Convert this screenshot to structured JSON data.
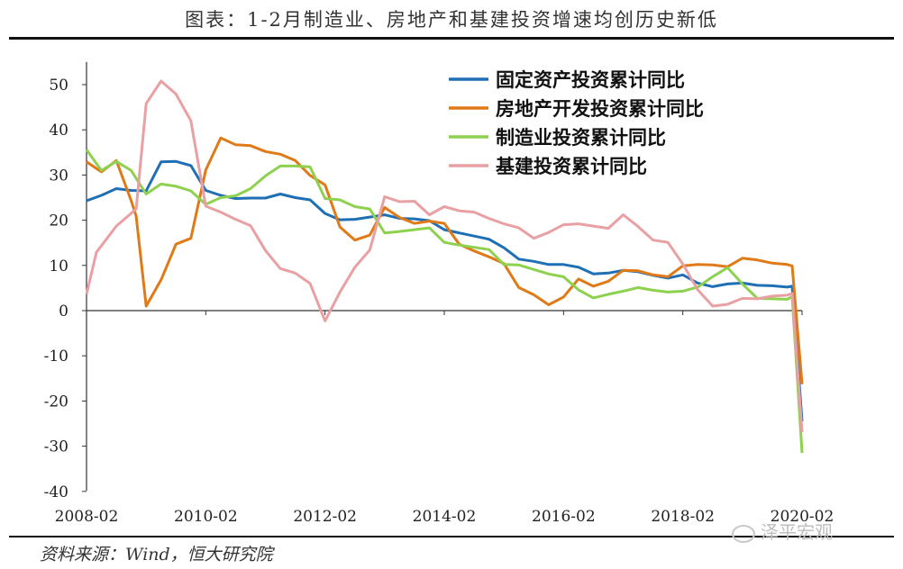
{
  "title": "图表：1-2月制造业、房地产和基建投资增速均创历史新低",
  "source": "资料来源：Wind，恒大研究院",
  "watermark": "泽平宏观",
  "chart_data": {
    "type": "line",
    "title": "图表：1-2月制造业、房地产和基建投资增速均创历史新低",
    "ylim": [
      -40,
      55
    ],
    "yticks": [
      "50",
      "40",
      "30",
      "20",
      "10",
      "0",
      "-10",
      "-20",
      "-30",
      "-40"
    ],
    "xticks": [
      "2008-02",
      "2010-02",
      "2012-02",
      "2014-02",
      "2016-02",
      "2018-02",
      "2020-02"
    ],
    "xrange": [
      "2008-02",
      "2020-02"
    ],
    "grid": false,
    "legend_position": "top-right",
    "series": [
      {
        "name": "固定资产投资累计同比",
        "color": "#1f6fb5",
        "points": [
          [
            "2008-02",
            24.3
          ],
          [
            "2008-05",
            25.5
          ],
          [
            "2008-08",
            27.0
          ],
          [
            "2008-11",
            26.6
          ],
          [
            "2009-02",
            26.5
          ],
          [
            "2009-05",
            32.9
          ],
          [
            "2009-08",
            33.0
          ],
          [
            "2009-11",
            32.1
          ],
          [
            "2010-02",
            26.6
          ],
          [
            "2010-05",
            25.5
          ],
          [
            "2010-08",
            24.8
          ],
          [
            "2010-11",
            24.9
          ],
          [
            "2011-02",
            24.9
          ],
          [
            "2011-05",
            25.8
          ],
          [
            "2011-08",
            25.0
          ],
          [
            "2011-11",
            24.5
          ],
          [
            "2012-02",
            21.5
          ],
          [
            "2012-05",
            20.1
          ],
          [
            "2012-08",
            20.2
          ],
          [
            "2012-11",
            20.7
          ],
          [
            "2013-02",
            21.2
          ],
          [
            "2013-05",
            20.4
          ],
          [
            "2013-08",
            20.3
          ],
          [
            "2013-11",
            19.9
          ],
          [
            "2014-02",
            17.9
          ],
          [
            "2014-05",
            17.2
          ],
          [
            "2014-08",
            16.5
          ],
          [
            "2014-11",
            15.8
          ],
          [
            "2015-02",
            13.9
          ],
          [
            "2015-05",
            11.4
          ],
          [
            "2015-08",
            10.9
          ],
          [
            "2015-11",
            10.2
          ],
          [
            "2016-02",
            10.2
          ],
          [
            "2016-05",
            9.6
          ],
          [
            "2016-08",
            8.1
          ],
          [
            "2016-11",
            8.3
          ],
          [
            "2017-02",
            8.9
          ],
          [
            "2017-05",
            8.6
          ],
          [
            "2017-08",
            7.8
          ],
          [
            "2017-11",
            7.2
          ],
          [
            "2018-02",
            7.9
          ],
          [
            "2018-05",
            6.1
          ],
          [
            "2018-08",
            5.3
          ],
          [
            "2018-11",
            5.9
          ],
          [
            "2019-02",
            6.1
          ],
          [
            "2019-05",
            5.6
          ],
          [
            "2019-08",
            5.5
          ],
          [
            "2019-11",
            5.2
          ],
          [
            "2019-12",
            5.4
          ],
          [
            "2020-02",
            -24.5
          ]
        ]
      },
      {
        "name": "房地产开发投资累计同比",
        "color": "#e07a17",
        "points": [
          [
            "2008-02",
            32.9
          ],
          [
            "2008-05",
            30.7
          ],
          [
            "2008-08",
            33.2
          ],
          [
            "2008-11",
            24.3
          ],
          [
            "2008-12",
            20.9
          ],
          [
            "2009-02",
            1.0
          ],
          [
            "2009-05",
            6.8
          ],
          [
            "2009-08",
            14.7
          ],
          [
            "2009-11",
            16.0
          ],
          [
            "2010-02",
            31.1
          ],
          [
            "2010-05",
            38.2
          ],
          [
            "2010-08",
            36.7
          ],
          [
            "2010-11",
            36.5
          ],
          [
            "2011-02",
            35.2
          ],
          [
            "2011-05",
            34.6
          ],
          [
            "2011-08",
            33.2
          ],
          [
            "2011-11",
            29.9
          ],
          [
            "2012-02",
            27.8
          ],
          [
            "2012-05",
            18.5
          ],
          [
            "2012-08",
            15.6
          ],
          [
            "2012-11",
            16.7
          ],
          [
            "2013-02",
            22.8
          ],
          [
            "2013-05",
            20.6
          ],
          [
            "2013-08",
            19.3
          ],
          [
            "2013-11",
            19.8
          ],
          [
            "2014-02",
            19.3
          ],
          [
            "2014-05",
            14.7
          ],
          [
            "2014-08",
            13.2
          ],
          [
            "2014-11",
            11.9
          ],
          [
            "2015-02",
            10.4
          ],
          [
            "2015-05",
            5.1
          ],
          [
            "2015-08",
            3.5
          ],
          [
            "2015-11",
            1.3
          ],
          [
            "2016-02",
            3.0
          ],
          [
            "2016-05",
            7.0
          ],
          [
            "2016-08",
            5.4
          ],
          [
            "2016-11",
            6.5
          ],
          [
            "2017-02",
            8.9
          ],
          [
            "2017-05",
            8.8
          ],
          [
            "2017-08",
            7.9
          ],
          [
            "2017-11",
            7.5
          ],
          [
            "2018-02",
            9.9
          ],
          [
            "2018-05",
            10.2
          ],
          [
            "2018-08",
            10.1
          ],
          [
            "2018-11",
            9.7
          ],
          [
            "2019-02",
            11.6
          ],
          [
            "2019-05",
            11.2
          ],
          [
            "2019-08",
            10.5
          ],
          [
            "2019-11",
            10.2
          ],
          [
            "2019-12",
            9.9
          ],
          [
            "2020-02",
            -16.3
          ]
        ]
      },
      {
        "name": "制造业投资累计同比",
        "color": "#8ed14f",
        "points": [
          [
            "2008-02",
            35.6
          ],
          [
            "2008-05",
            31.0
          ],
          [
            "2008-08",
            33.0
          ],
          [
            "2008-11",
            31.0
          ],
          [
            "2009-02",
            25.8
          ],
          [
            "2009-05",
            28.0
          ],
          [
            "2009-08",
            27.5
          ],
          [
            "2009-11",
            26.5
          ],
          [
            "2010-02",
            23.5
          ],
          [
            "2010-05",
            25.0
          ],
          [
            "2010-08",
            25.4
          ],
          [
            "2010-11",
            27.0
          ],
          [
            "2011-02",
            29.8
          ],
          [
            "2011-05",
            32.0
          ],
          [
            "2011-08",
            32.0
          ],
          [
            "2011-11",
            31.8
          ],
          [
            "2012-02",
            24.8
          ],
          [
            "2012-05",
            24.5
          ],
          [
            "2012-08",
            23.0
          ],
          [
            "2012-11",
            22.5
          ],
          [
            "2013-02",
            17.2
          ],
          [
            "2013-05",
            17.5
          ],
          [
            "2013-08",
            17.9
          ],
          [
            "2013-11",
            18.3
          ],
          [
            "2014-02",
            15.1
          ],
          [
            "2014-05",
            14.5
          ],
          [
            "2014-08",
            14.0
          ],
          [
            "2014-11",
            13.5
          ],
          [
            "2015-02",
            10.2
          ],
          [
            "2015-05",
            10.1
          ],
          [
            "2015-08",
            9.1
          ],
          [
            "2015-11",
            8.1
          ],
          [
            "2016-02",
            7.5
          ],
          [
            "2016-05",
            4.6
          ],
          [
            "2016-08",
            2.8
          ],
          [
            "2016-11",
            3.6
          ],
          [
            "2017-02",
            4.3
          ],
          [
            "2017-05",
            5.1
          ],
          [
            "2017-08",
            4.5
          ],
          [
            "2017-11",
            4.1
          ],
          [
            "2018-02",
            4.3
          ],
          [
            "2018-05",
            5.2
          ],
          [
            "2018-08",
            7.5
          ],
          [
            "2018-11",
            9.5
          ],
          [
            "2019-02",
            5.9
          ],
          [
            "2019-05",
            2.7
          ],
          [
            "2019-08",
            2.6
          ],
          [
            "2019-11",
            2.5
          ],
          [
            "2019-12",
            3.1
          ],
          [
            "2020-02",
            -31.5
          ]
        ]
      },
      {
        "name": "基建投资累计同比",
        "color": "#e9a0a3",
        "points": [
          [
            "2008-02",
            3.6
          ],
          [
            "2008-04",
            12.9
          ],
          [
            "2008-08",
            18.7
          ],
          [
            "2008-12",
            22.5
          ],
          [
            "2009-02",
            45.8
          ],
          [
            "2009-05",
            50.8
          ],
          [
            "2009-08",
            47.9
          ],
          [
            "2009-11",
            42.0
          ],
          [
            "2010-02",
            23.1
          ],
          [
            "2010-05",
            21.8
          ],
          [
            "2010-08",
            20.2
          ],
          [
            "2010-11",
            18.8
          ],
          [
            "2011-02",
            13.3
          ],
          [
            "2011-05",
            9.3
          ],
          [
            "2011-08",
            8.3
          ],
          [
            "2011-11",
            6.0
          ],
          [
            "2012-02",
            -2.3
          ],
          [
            "2012-05",
            4.1
          ],
          [
            "2012-08",
            9.6
          ],
          [
            "2012-11",
            13.4
          ],
          [
            "2013-02",
            25.2
          ],
          [
            "2013-05",
            24.1
          ],
          [
            "2013-08",
            24.2
          ],
          [
            "2013-11",
            21.2
          ],
          [
            "2014-02",
            23.0
          ],
          [
            "2014-05",
            22.1
          ],
          [
            "2014-08",
            21.8
          ],
          [
            "2014-11",
            20.4
          ],
          [
            "2015-02",
            19.2
          ],
          [
            "2015-05",
            18.3
          ],
          [
            "2015-08",
            16.0
          ],
          [
            "2015-11",
            17.3
          ],
          [
            "2016-02",
            19.0
          ],
          [
            "2016-05",
            19.2
          ],
          [
            "2016-08",
            18.7
          ],
          [
            "2016-11",
            18.2
          ],
          [
            "2017-02",
            21.2
          ],
          [
            "2017-05",
            18.6
          ],
          [
            "2017-08",
            15.6
          ],
          [
            "2017-11",
            15.1
          ],
          [
            "2018-02",
            10.3
          ],
          [
            "2018-05",
            4.6
          ],
          [
            "2018-08",
            1.0
          ],
          [
            "2018-11",
            1.4
          ],
          [
            "2019-02",
            2.7
          ],
          [
            "2019-05",
            2.6
          ],
          [
            "2019-08",
            3.2
          ],
          [
            "2019-11",
            3.4
          ],
          [
            "2019-12",
            3.8
          ],
          [
            "2020-02",
            -26.9
          ]
        ]
      }
    ]
  }
}
